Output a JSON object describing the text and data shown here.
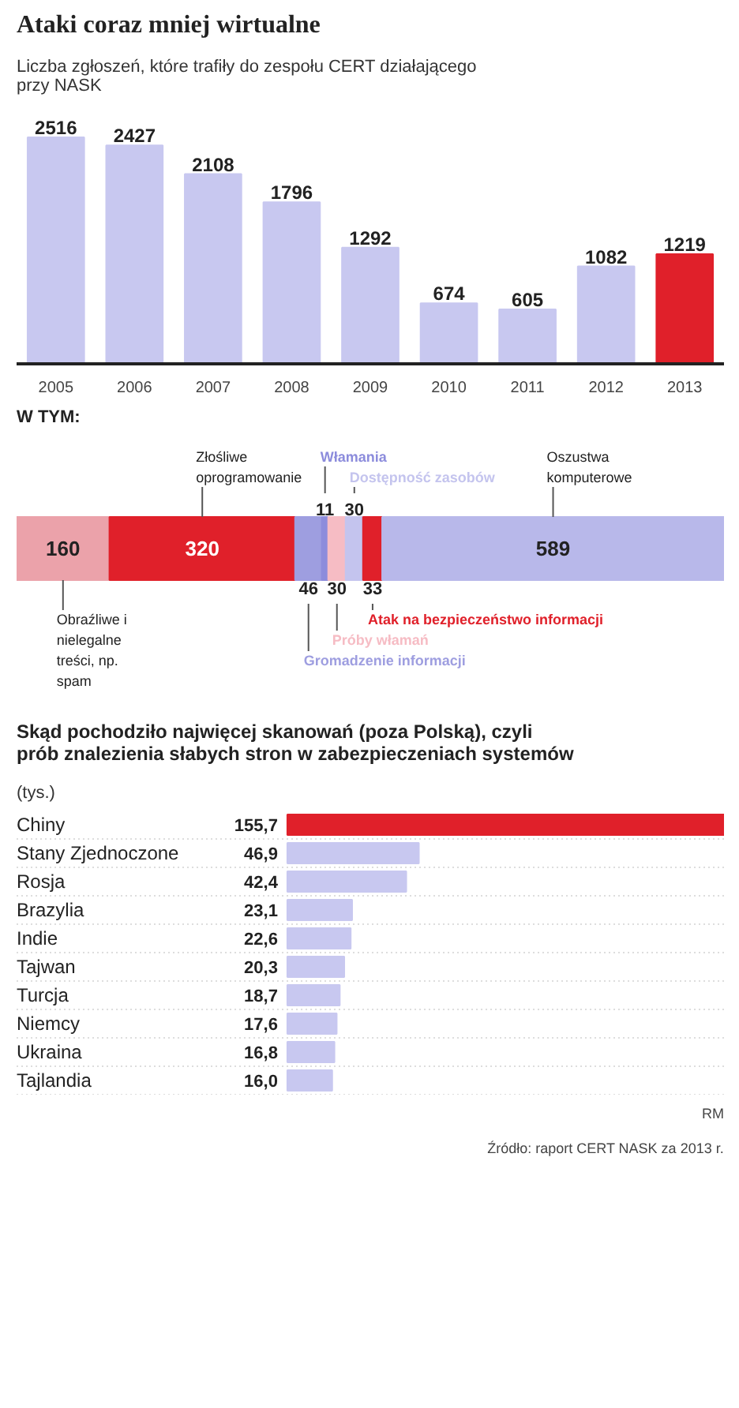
{
  "chart_data": [
    {
      "type": "bar",
      "title": "Ataki coraz mniej wirtualne",
      "subtitle": "Liczba zgłoszeń, które trafiły do zespołu CERT działającego przy NASK",
      "categories": [
        "2005",
        "2006",
        "2007",
        "2008",
        "2009",
        "2010",
        "2011",
        "2012",
        "2013"
      ],
      "values": [
        2516,
        2427,
        2108,
        1796,
        1292,
        674,
        605,
        1082,
        1219
      ],
      "colors": [
        "#c8c8f0",
        "#c8c8f0",
        "#c8c8f0",
        "#c8c8f0",
        "#c8c8f0",
        "#c8c8f0",
        "#c8c8f0",
        "#c8c8f0",
        "#e0202a"
      ],
      "data_labels": true
    },
    {
      "type": "bar",
      "orientation": "horizontal",
      "stacked": true,
      "title": "W TYM:",
      "categories": [
        null
      ],
      "data_labels": true,
      "series": [
        {
          "name": "Obraźliwe i nielegalne treści, np. spam",
          "color": "#eba2aa",
          "values": [
            160
          ]
        },
        {
          "name": "Złośliwe oprogramowanie",
          "color": "#e0202a",
          "values": [
            320
          ]
        },
        {
          "name": "Gromadzenie informacji",
          "color": "#9e9ee0",
          "values": [
            46
          ]
        },
        {
          "name": "Włamania",
          "color": "#8c8cdc",
          "values": [
            11
          ]
        },
        {
          "name": "Próby włamań",
          "color": "#f6bcc4",
          "values": [
            30
          ]
        },
        {
          "name": "Dostępność zasobów",
          "color": "#c4c4ee",
          "values": [
            30
          ]
        },
        {
          "name": "Atak na bezpieczeństwo informacji",
          "color": "#e0202a",
          "values": [
            33
          ]
        },
        {
          "name": "Oszustwa komputerowe",
          "color": "#b8b8ea",
          "values": [
            589
          ]
        }
      ]
    },
    {
      "type": "bar",
      "orientation": "horizontal",
      "title": "Skąd pochodziło najwięcej skanowań (poza Polską), czyli prób znalezienia słabych stron w zabezpieczeniach systemów",
      "subtitle": "(tys.)",
      "categories": [
        "Chiny",
        "Stany Zjednoczone",
        "Rosja",
        "Brazylia",
        "Indie",
        "Tajwan",
        "Turcja",
        "Niemcy",
        "Ukraina",
        "Tajlandia"
      ],
      "values": [
        155.7,
        46.9,
        42.4,
        23.1,
        22.6,
        20.3,
        18.7,
        17.6,
        16.8,
        16.0
      ],
      "value_labels": [
        "155,7",
        "46,9",
        "42,4",
        "23,1",
        "22,6",
        "20,3",
        "18,7",
        "17,6",
        "16,8",
        "16,0"
      ],
      "colors": [
        "#e0202a",
        "#c8c8f0",
        "#c8c8f0",
        "#c8c8f0",
        "#c8c8f0",
        "#c8c8f0",
        "#c8c8f0",
        "#c8c8f0",
        "#c8c8f0",
        "#c8c8f0"
      ],
      "annotations": [
        "RM",
        "Źródło: raport CERT NASK za 2013 r."
      ]
    }
  ]
}
